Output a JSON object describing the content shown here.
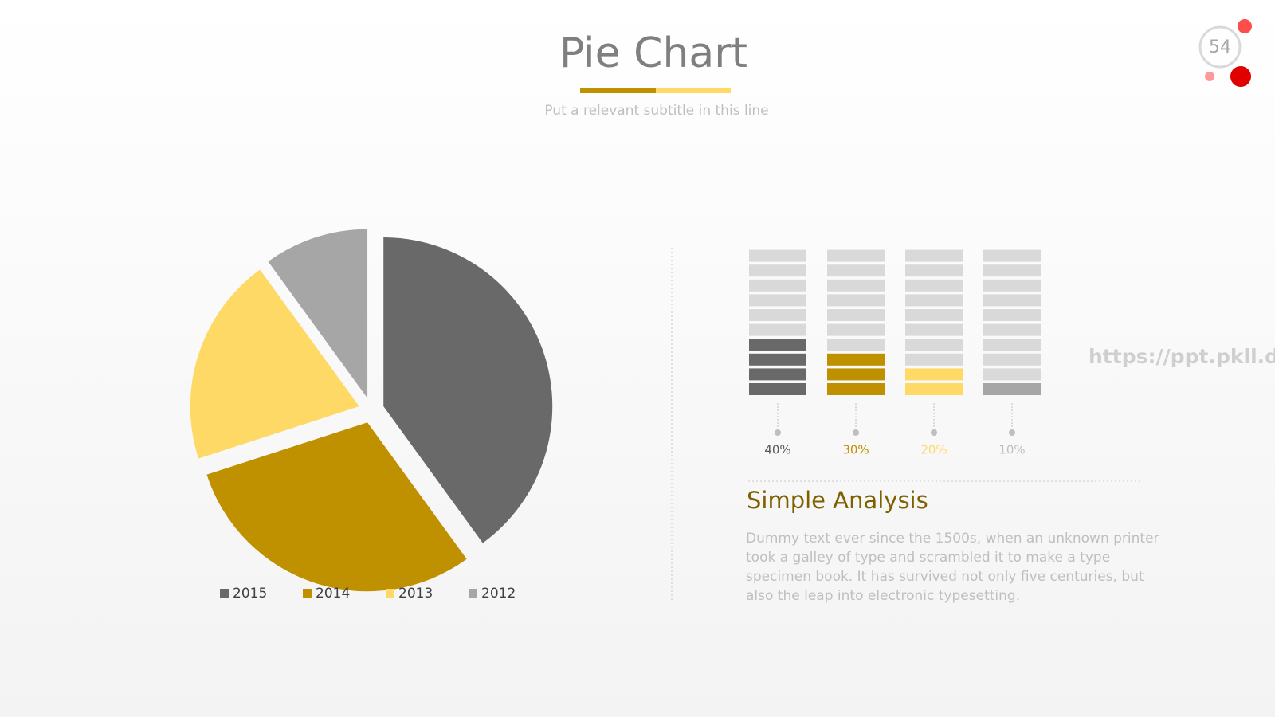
{
  "slide": {
    "title": "Pie Chart",
    "subtitle": "Put a relevant subtitle in this line",
    "page_number": "54",
    "watermark": "https://ppt.pkll.de",
    "heading": "Simple Analysis",
    "body": "Dummy text ever since the 1500s, when an unknown printer took a galley of type and scrambled it to make a type specimen book. It has survived not only five centuries, but also the leap into electronic typesetting."
  },
  "chart_data": {
    "type": "pie",
    "categories": [
      "2015",
      "2014",
      "2013",
      "2012"
    ],
    "values": [
      40,
      30,
      20,
      10
    ],
    "value_labels": [
      "40%",
      "30%",
      "20%",
      "10%"
    ],
    "colors": [
      "#696969",
      "#bf9000",
      "#ffd966",
      "#a6a6a6"
    ],
    "label_colors": [
      "#595959",
      "#bf9000",
      "#ffd966",
      "#bfbfbf"
    ],
    "legend": "bottom"
  }
}
